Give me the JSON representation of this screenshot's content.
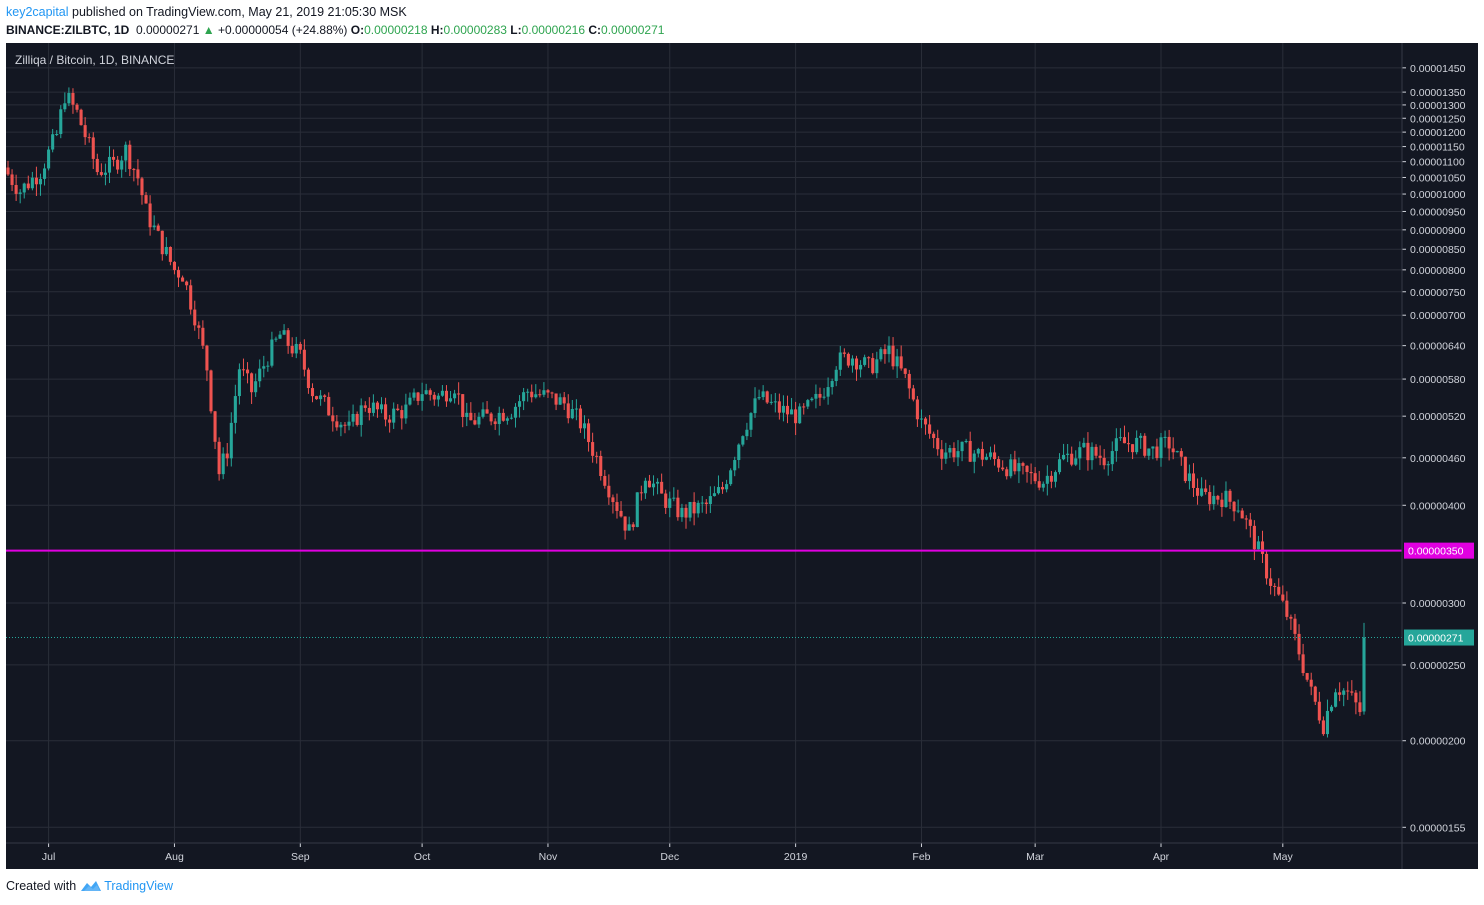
{
  "header": {
    "publisher": "key2capital",
    "published_text": " published on TradingView.com, May 21, 2019 21:05:30 MSK",
    "symbol": "BINANCE:ZILBTC, 1D",
    "price": "0.00000271",
    "change": "+0.00000054 (+24.88%)",
    "open_label": "O:",
    "open_value": "0.00000218",
    "high_label": "H:",
    "high_value": "0.00000283",
    "low_label": "L:",
    "low_value": "0.00000216",
    "close_label": "C:",
    "close_value": "0.00000271"
  },
  "footer": {
    "created_with": "Created with",
    "brand": "TradingView"
  },
  "chart_data": {
    "type": "candlestick",
    "title": "Zilliqa / Bitcoin, 1D, BINANCE",
    "scale": "log",
    "ylim": [
      1.48e-06,
      1.56e-05
    ],
    "x_start": "2018-06-21",
    "x_end": "2019-05-21",
    "x_ticks": [
      {
        "date": "2018-07-01",
        "label": "Jul"
      },
      {
        "date": "2018-08-01",
        "label": "Aug"
      },
      {
        "date": "2018-09-01",
        "label": "Sep"
      },
      {
        "date": "2018-10-01",
        "label": "Oct"
      },
      {
        "date": "2018-11-01",
        "label": "Nov"
      },
      {
        "date": "2018-12-01",
        "label": "Dec"
      },
      {
        "date": "2019-01-01",
        "label": "2019"
      },
      {
        "date": "2019-02-01",
        "label": "Feb"
      },
      {
        "date": "2019-03-01",
        "label": "Mar"
      },
      {
        "date": "2019-04-01",
        "label": "Apr"
      },
      {
        "date": "2019-05-01",
        "label": "May"
      }
    ],
    "y_ticks": [
      "0.00001450",
      "0.00001350",
      "0.00001300",
      "0.00001250",
      "0.00001200",
      "0.00001150",
      "0.00001100",
      "0.00001050",
      "0.00001000",
      "0.00000950",
      "0.00000900",
      "0.00000850",
      "0.00000800",
      "0.00000750",
      "0.00000700",
      "0.00000640",
      "0.00000580",
      "0.00000520",
      "0.00000460",
      "0.00000400",
      "0.00000300",
      "0.00000250",
      "0.00000200",
      "0.00000155"
    ],
    "horizontal_line": {
      "value": 3.5e-06,
      "label": "0.00000350",
      "color": "#e100e1"
    },
    "last_price": {
      "value": 2.71e-06,
      "label": "0.00000271",
      "color": "#26a69a"
    },
    "colors": {
      "background": "#131722",
      "grid": "#2a2e39",
      "up": "#26a69a",
      "down": "#ef5350",
      "text": "#d1d4dc"
    },
    "close_waypoints": [
      [
        "2018-06-21",
        1.06e-05
      ],
      [
        "2018-06-24",
        1.01e-05
      ],
      [
        "2018-06-29",
        1.07e-05
      ],
      [
        "2018-07-03",
        1.19e-05
      ],
      [
        "2018-07-05",
        1.34e-05
      ],
      [
        "2018-07-08",
        1.27e-05
      ],
      [
        "2018-07-11",
        1.15e-05
      ],
      [
        "2018-07-13",
        1.07e-05
      ],
      [
        "2018-07-17",
        1.09e-05
      ],
      [
        "2018-07-20",
        1.14e-05
      ],
      [
        "2018-07-23",
        1.05e-05
      ],
      [
        "2018-07-25",
        9.5e-06
      ],
      [
        "2018-07-28",
        8.8e-06
      ],
      [
        "2018-08-01",
        8e-06
      ],
      [
        "2018-08-03",
        7.9e-06
      ],
      [
        "2018-08-06",
        7e-06
      ],
      [
        "2018-08-09",
        6e-06
      ],
      [
        "2018-08-12",
        4.4e-06
      ],
      [
        "2018-08-14",
        4.7e-06
      ],
      [
        "2018-08-17",
        6e-06
      ],
      [
        "2018-08-20",
        5.6e-06
      ],
      [
        "2018-08-24",
        6.2e-06
      ],
      [
        "2018-08-27",
        6.6e-06
      ],
      [
        "2018-09-01",
        6.2e-06
      ],
      [
        "2018-09-04",
        5.6e-06
      ],
      [
        "2018-09-08",
        5.3e-06
      ],
      [
        "2018-09-13",
        5e-06
      ],
      [
        "2018-09-17",
        5.4e-06
      ],
      [
        "2018-09-22",
        5.2e-06
      ],
      [
        "2018-09-27",
        5.3e-06
      ],
      [
        "2018-10-01",
        5.6e-06
      ],
      [
        "2018-10-05",
        5.5e-06
      ],
      [
        "2018-10-09",
        5.7e-06
      ],
      [
        "2018-10-12",
        5.1e-06
      ],
      [
        "2018-10-18",
        5.2e-06
      ],
      [
        "2018-10-23",
        5.3e-06
      ],
      [
        "2018-10-27",
        5.6e-06
      ],
      [
        "2018-11-01",
        5.5e-06
      ],
      [
        "2018-11-05",
        5.4e-06
      ],
      [
        "2018-11-09",
        5.1e-06
      ],
      [
        "2018-11-13",
        4.6e-06
      ],
      [
        "2018-11-17",
        4.1e-06
      ],
      [
        "2018-11-21",
        3.7e-06
      ],
      [
        "2018-11-25",
        4.4e-06
      ],
      [
        "2018-11-29",
        4.1e-06
      ],
      [
        "2018-12-04",
        3.9e-06
      ],
      [
        "2018-12-10",
        4e-06
      ],
      [
        "2018-12-14",
        4.2e-06
      ],
      [
        "2018-12-19",
        5e-06
      ],
      [
        "2018-12-23",
        5.5e-06
      ],
      [
        "2018-12-28",
        5.3e-06
      ],
      [
        "2019-01-02",
        5.2e-06
      ],
      [
        "2019-01-07",
        5.5e-06
      ],
      [
        "2019-01-11",
        6.1e-06
      ],
      [
        "2019-01-15",
        6.2e-06
      ],
      [
        "2019-01-19",
        6e-06
      ],
      [
        "2019-01-24",
        6.3e-06
      ],
      [
        "2019-01-28",
        5.8e-06
      ],
      [
        "2019-02-01",
        5.1e-06
      ],
      [
        "2019-02-06",
        4.7e-06
      ],
      [
        "2019-02-12",
        4.7e-06
      ],
      [
        "2019-02-18",
        4.6e-06
      ],
      [
        "2019-02-25",
        4.4e-06
      ],
      [
        "2019-03-03",
        4.3e-06
      ],
      [
        "2019-03-08",
        4.6e-06
      ],
      [
        "2019-03-13",
        4.7e-06
      ],
      [
        "2019-03-18",
        4.6e-06
      ],
      [
        "2019-03-22",
        4.8e-06
      ],
      [
        "2019-03-26",
        4.8e-06
      ],
      [
        "2019-03-30",
        4.7e-06
      ],
      [
        "2019-04-03",
        4.8e-06
      ],
      [
        "2019-04-07",
        4.4e-06
      ],
      [
        "2019-04-11",
        4.1e-06
      ],
      [
        "2019-04-16",
        4.1e-06
      ],
      [
        "2019-04-20",
        4e-06
      ],
      [
        "2019-04-24",
        3.6e-06
      ],
      [
        "2019-04-28",
        3.2e-06
      ],
      [
        "2019-05-02",
        2.9e-06
      ],
      [
        "2019-05-05",
        2.6e-06
      ],
      [
        "2019-05-08",
        2.3e-06
      ],
      [
        "2019-05-11",
        2.1e-06
      ],
      [
        "2019-05-14",
        2.35e-06
      ],
      [
        "2019-05-17",
        2.3e-06
      ],
      [
        "2019-05-20",
        2.18e-06
      ],
      [
        "2019-05-21",
        2.71e-06
      ]
    ]
  }
}
